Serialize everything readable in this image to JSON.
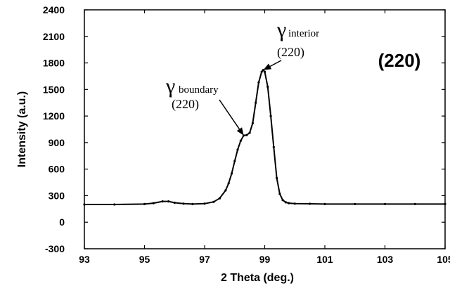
{
  "chart_data": {
    "type": "line",
    "title": "",
    "xlabel": "2 Theta (deg.)",
    "ylabel": "Intensity (a.u.)",
    "xlim": [
      93,
      105
    ],
    "ylim": [
      -300,
      2400
    ],
    "x_ticks": [
      "93",
      "95",
      "97",
      "99",
      "101",
      "103",
      "105"
    ],
    "y_ticks": [
      "-300",
      "0",
      "300",
      "600",
      "900",
      "1200",
      "1500",
      "1800",
      "2100",
      "2400"
    ],
    "grid": false,
    "line_color": "#000000",
    "panel_label": "(220)",
    "annotations": [
      {
        "name": "gamma-interior",
        "symbol": "γ",
        "subscript": "interior",
        "hkl": "(220)",
        "points_to": {
          "x": 98.95,
          "y": 1720
        }
      },
      {
        "name": "gamma-boundary",
        "symbol": "γ",
        "subscript": "boundary",
        "hkl": "(220)",
        "points_to": {
          "x": 98.3,
          "y": 980
        }
      }
    ],
    "series": [
      {
        "x": [
          93,
          94,
          95,
          95.3,
          95.6,
          95.8,
          96,
          96.3,
          96.6,
          97,
          97.3,
          97.5,
          97.7,
          97.8,
          97.9,
          98,
          98.1,
          98.2,
          98.3,
          98.4,
          98.5,
          98.6,
          98.7,
          98.8,
          98.9,
          98.95,
          99,
          99.1,
          99.2,
          99.3,
          99.4,
          99.5,
          99.6,
          99.7,
          99.8,
          100,
          100.5,
          101,
          102,
          103,
          104,
          105
        ],
        "y": [
          200,
          200,
          205,
          215,
          235,
          235,
          220,
          210,
          205,
          210,
          230,
          270,
          360,
          440,
          550,
          690,
          820,
          920,
          980,
          985,
          1010,
          1120,
          1350,
          1580,
          1700,
          1720,
          1700,
          1530,
          1200,
          850,
          500,
          320,
          250,
          225,
          215,
          210,
          208,
          205,
          205,
          205,
          205,
          205
        ]
      }
    ]
  }
}
